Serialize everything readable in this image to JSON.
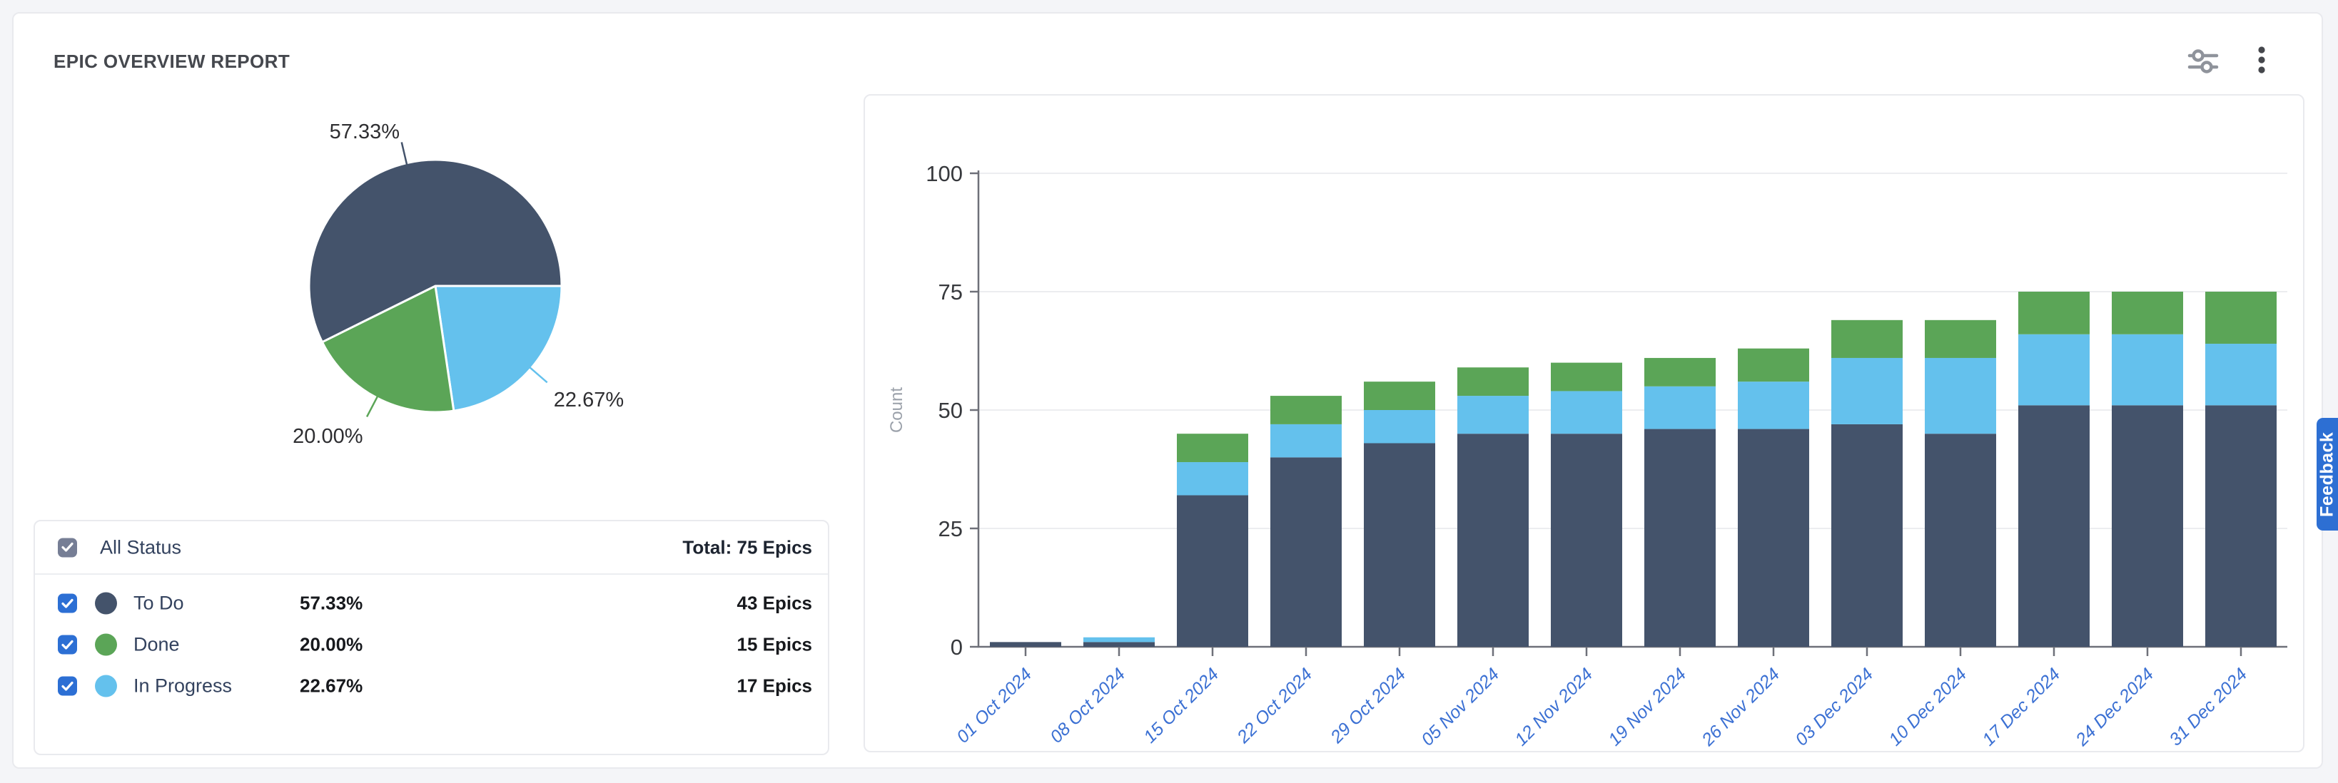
{
  "report": {
    "title": "EPIC OVERVIEW REPORT"
  },
  "toolbar": {
    "icons": [
      "sliders-settings-icon",
      "kebab-menu-icon"
    ]
  },
  "feedback": {
    "label": "Feedback"
  },
  "legend": {
    "all_label": "All Status",
    "total_label": "Total: 75 Epics",
    "rows": [
      {
        "label": "To Do",
        "percent": "57.33%",
        "epics": "43 Epics",
        "color": "#44536B",
        "checked": true
      },
      {
        "label": "Done",
        "percent": "20.00%",
        "epics": "15 Epics",
        "color": "#5BA557",
        "checked": true
      },
      {
        "label": "In Progress",
        "percent": "22.67%",
        "epics": "17 Epics",
        "color": "#64C1ED",
        "checked": true
      }
    ]
  },
  "colors": {
    "todo": "#44536B",
    "done": "#5BA557",
    "in_progress": "#64C1ED",
    "checkbox_blue": "#2C6FD4",
    "checkbox_gray": "#767E95",
    "x_label_blue": "#3B70D3",
    "feedback_blue": "#2D6FD3",
    "axis": "#6E7079",
    "grid": "#ECEDF0"
  },
  "chart_data": [
    {
      "type": "pie",
      "start_angle_deg": 0,
      "direction": "clockwise",
      "slices": [
        {
          "name": "In Progress",
          "percent": 22.67,
          "label": "22.67%",
          "color": "#64C1ED"
        },
        {
          "name": "Done",
          "percent": 20.0,
          "label": "20.00%",
          "color": "#5BA557"
        },
        {
          "name": "To Do",
          "percent": 57.33,
          "label": "57.33%",
          "color": "#44536B"
        }
      ]
    },
    {
      "type": "bar",
      "stacked": true,
      "title": "",
      "xlabel": "",
      "ylabel": "Count",
      "ylim": [
        0,
        100
      ],
      "yticks": [
        0,
        25,
        50,
        75,
        100
      ],
      "grid": true,
      "legend_position": "none",
      "x_tick_rotation_deg": -45,
      "categories": [
        "01 Oct 2024",
        "08 Oct 2024",
        "15 Oct 2024",
        "22 Oct 2024",
        "29 Oct 2024",
        "05 Nov 2024",
        "12 Nov 2024",
        "19 Nov 2024",
        "26 Nov 2024",
        "03 Dec 2024",
        "10 Dec 2024",
        "17 Dec 2024",
        "24 Dec 2024",
        "31 Dec 2024"
      ],
      "series": [
        {
          "name": "To Do",
          "color": "#44536B",
          "values": [
            1,
            1,
            32,
            40,
            43,
            45,
            45,
            46,
            46,
            47,
            45,
            51,
            51,
            51
          ]
        },
        {
          "name": "In Progress",
          "color": "#64C1ED",
          "values": [
            0,
            1,
            7,
            7,
            7,
            8,
            9,
            9,
            10,
            14,
            16,
            15,
            15,
            13
          ]
        },
        {
          "name": "Done",
          "color": "#5BA557",
          "values": [
            0,
            0,
            6,
            6,
            6,
            6,
            6,
            6,
            7,
            8,
            8,
            9,
            9,
            11
          ]
        }
      ]
    }
  ]
}
